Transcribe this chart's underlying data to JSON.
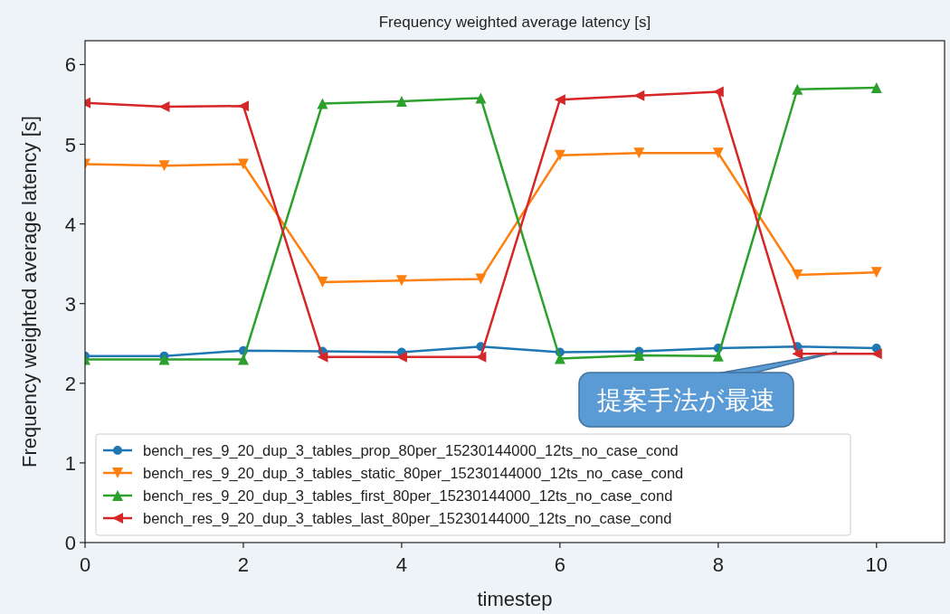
{
  "chart_data": {
    "type": "line",
    "title": "Frequency weighted average latency [s]",
    "xlabel": "timestep",
    "ylabel": "Frequency weighted average latency [s]",
    "x": [
      0,
      1,
      2,
      3,
      4,
      5,
      6,
      7,
      8,
      9,
      10
    ],
    "series": [
      {
        "name": "bench_res_9_20_dup_3_tables_prop_80per_15230144000_12ts_no_case_cond",
        "color": "#1f77b4",
        "marker": "circle",
        "values": [
          2.34,
          2.34,
          2.41,
          2.4,
          2.39,
          2.46,
          2.39,
          2.4,
          2.44,
          2.46,
          2.44
        ]
      },
      {
        "name": "bench_res_9_20_dup_3_tables_static_80per_15230144000_12ts_no_case_cond",
        "color": "#ff7f0e",
        "marker": "triangle-down",
        "values": [
          4.75,
          4.73,
          4.75,
          3.27,
          3.29,
          3.31,
          4.86,
          4.89,
          4.89,
          3.36,
          3.39
        ]
      },
      {
        "name": "bench_res_9_20_dup_3_tables_first_80per_15230144000_12ts_no_case_cond",
        "color": "#2ca02c",
        "marker": "triangle",
        "values": [
          2.3,
          2.3,
          2.3,
          5.51,
          5.54,
          5.58,
          2.31,
          2.35,
          2.34,
          5.69,
          5.71
        ]
      },
      {
        "name": "bench_res_9_20_dup_3_tables_last_80per_15230144000_12ts_no_case_cond",
        "color": "#d62728",
        "marker": "triangle-left",
        "values": [
          5.52,
          5.47,
          5.48,
          2.33,
          2.33,
          2.33,
          5.56,
          5.61,
          5.66,
          2.37,
          2.37
        ]
      }
    ],
    "xlim": [
      0,
      10.86
    ],
    "ylim": [
      0,
      6.3
    ],
    "xticks": [
      0,
      2,
      4,
      6,
      8,
      10
    ],
    "yticks": [
      0,
      1,
      2,
      3,
      4,
      5,
      6
    ],
    "grid": false,
    "legend": "bottom left",
    "line_style": "solid",
    "annotations": [
      {
        "text": "提案手法が最速",
        "x": 9.5,
        "y": 2.46
      }
    ]
  }
}
